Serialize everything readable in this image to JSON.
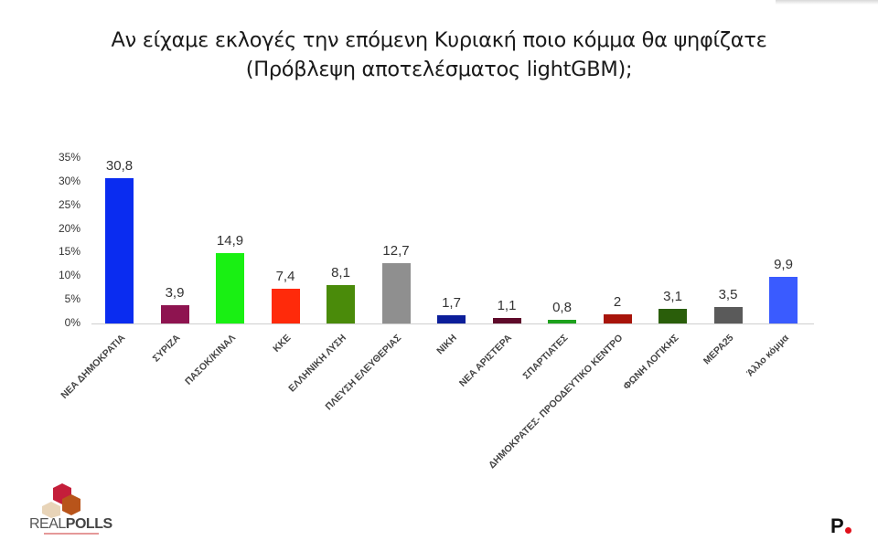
{
  "title": {
    "line1": "Αν είχαμε εκλογές την επόμενη Κυριακή ποιο κόμμα θα ψηφίζατε",
    "line2": "(Πρόβλεψη αποτελέσματος lightGBM);"
  },
  "logos": {
    "left": {
      "name": "REALPOLLS",
      "part1": "REAL",
      "part2": "POLLS"
    },
    "right": {
      "letter": "P"
    }
  },
  "chart_data": {
    "type": "bar",
    "title": "Αν είχαμε εκλογές την επόμενη Κυριακή ποιο κόμμα θα ψηφίζατε (Πρόβλεψη αποτελέσματος lightGBM);",
    "xlabel": "",
    "ylabel": "",
    "ylim": [
      0,
      35
    ],
    "yticks": [
      "0%",
      "5%",
      "10%",
      "15%",
      "20%",
      "25%",
      "30%",
      "35%"
    ],
    "grid": false,
    "legend": "none",
    "categories": [
      "ΝΕΑ ΔΗΜΟΚΡΑΤΙΑ",
      "ΣΥΡΙΖΑ",
      "ΠΑΣΟΚ/ΚΙΝΑΛ",
      "ΚΚΕ",
      "ΕΛΛΗΝΙΚΗ ΛΥΣΗ",
      "ΠΛΕΥΣΗ ΕΛΕΥΘΕΡΙΑΣ",
      "ΝΙΚΗ",
      "ΝΕΑ ΑΡΙΣΤΕΡΑ",
      "ΣΠΑΡΤΙΑΤΕΣ",
      "ΔΗΜΟΚΡΑΤΕΣ-  ΠΡΟΟΔΕΥΤΙΚΟ ΚΕΝΤΡΟ",
      "ΦΩΝΗ ΛΟΓΙΚΗΣ",
      "ΜΕΡΑ25",
      "Άλλο κόμμα"
    ],
    "values": [
      30.8,
      3.9,
      14.9,
      7.4,
      8.1,
      12.7,
      1.7,
      1.1,
      0.8,
      2,
      3.1,
      3.5,
      9.9
    ],
    "value_labels": [
      "30,8",
      "3,9",
      "14,9",
      "7,4",
      "8,1",
      "12,7",
      "1,7",
      "1,1",
      "0,8",
      "2",
      "3,1",
      "3,5",
      "9,9"
    ],
    "colors": [
      "#0a2cf0",
      "#8e1450",
      "#19f013",
      "#ff2a0a",
      "#4a8b0a",
      "#8f8f8f",
      "#0c1e9a",
      "#5e0a2a",
      "#1da11d",
      "#a8140a",
      "#2a5e0a",
      "#5a5a5a",
      "#3a5bff"
    ]
  }
}
